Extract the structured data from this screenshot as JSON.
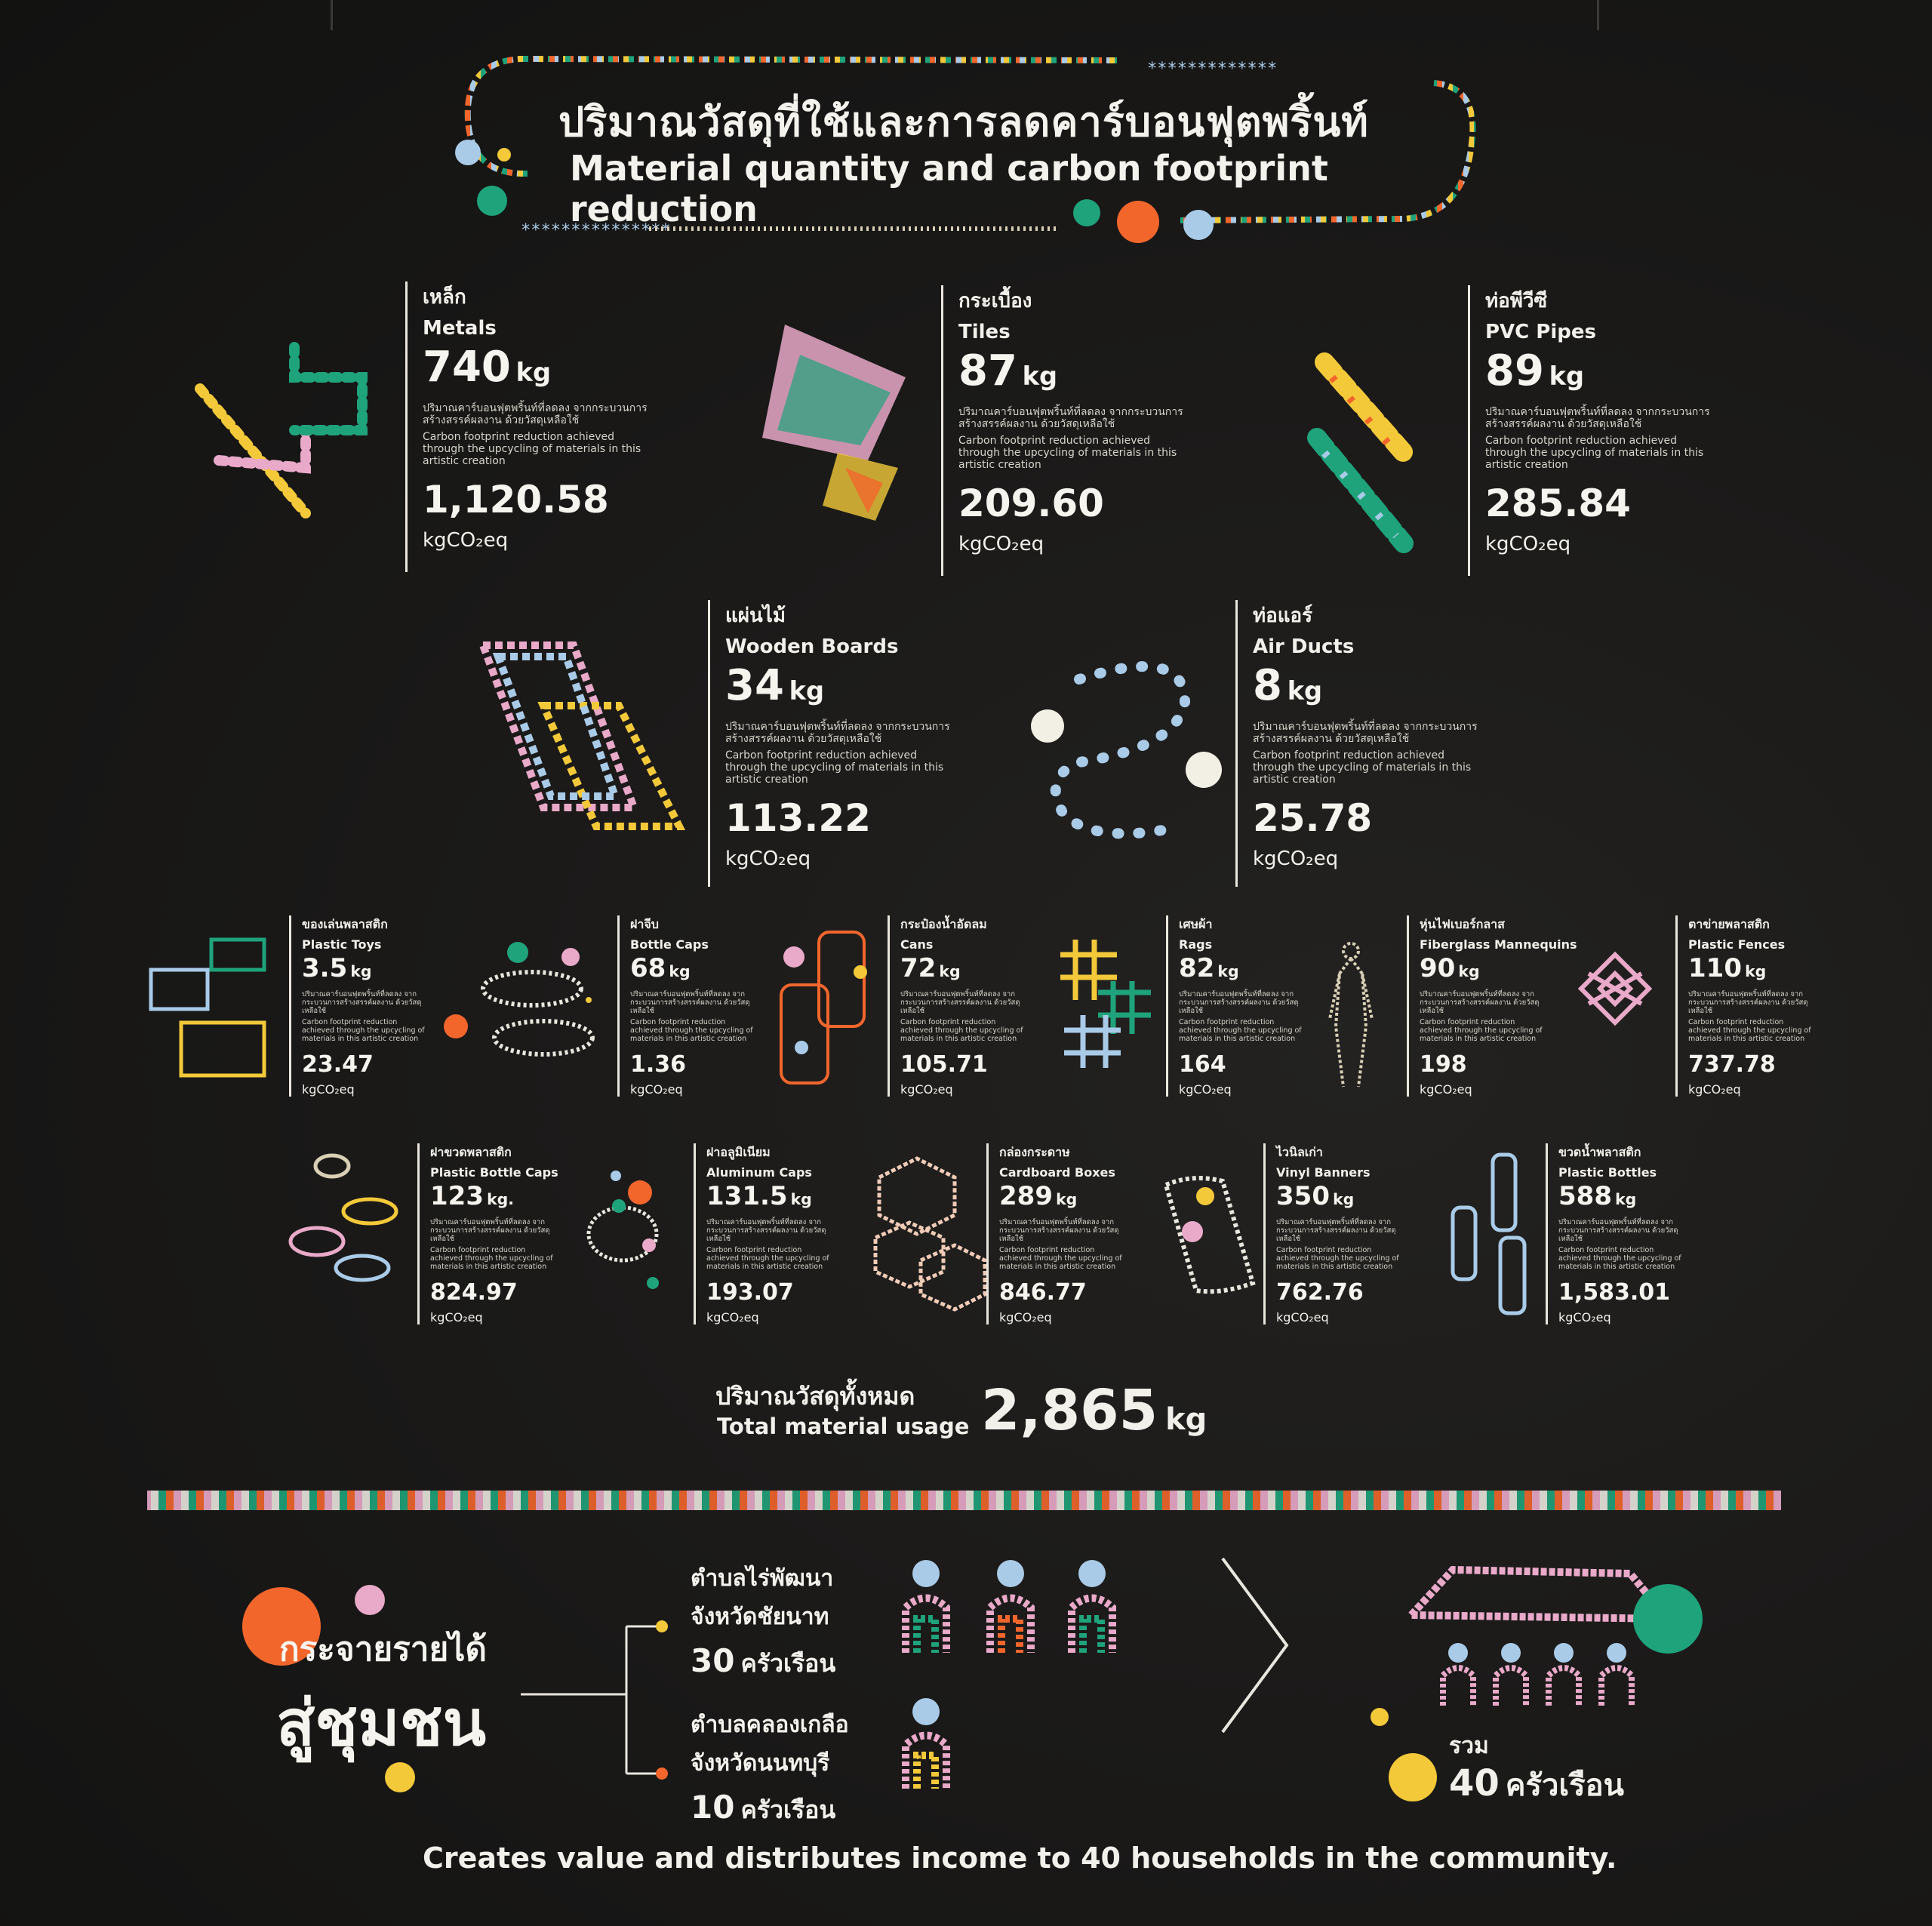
{
  "title": {
    "th": "ปริมาณวัสดุที่ใช้และการลดคาร์บอนฟุตพริ้นท์",
    "en": "Material quantity and carbon footprint reduction"
  },
  "note_th": "ปริมาณคาร์บอนฟุตพริ้นท์ที่ลดลง จากกระบวนการสร้างสรรค์ผลงาน ด้วยวัสดุเหลือใช้",
  "note_en": "Carbon footprint reduction achieved through the upcycling of materials in this artistic creation",
  "co2_unit": "kgCO₂eq",
  "materials": [
    {
      "th": "เหล็ก",
      "en": "Metals",
      "qty": "740",
      "unit": "kg",
      "co2": "1,120.58"
    },
    {
      "th": "กระเบื้อง",
      "en": "Tiles",
      "qty": "87",
      "unit": "kg",
      "co2": "209.60"
    },
    {
      "th": "ท่อพีวีซี",
      "en": "PVC Pipes",
      "qty": "89",
      "unit": "kg",
      "co2": "285.84"
    },
    {
      "th": "แผ่นไม้",
      "en": "Wooden Boards",
      "qty": "34",
      "unit": "kg",
      "co2": "113.22"
    },
    {
      "th": "ท่อแอร์",
      "en": "Air Ducts",
      "qty": "8",
      "unit": "kg",
      "co2": "25.78"
    },
    {
      "th": "ของเล่นพลาสติก",
      "en": "Plastic Toys",
      "qty": "3.5",
      "unit": "kg",
      "co2": "23.47"
    },
    {
      "th": "ฝาจีบ",
      "en": "Bottle Caps",
      "qty": "68",
      "unit": "kg",
      "co2": "1.36"
    },
    {
      "th": "กระป๋องน้ำอัดลม",
      "en": "Cans",
      "qty": "72",
      "unit": "kg",
      "co2": "105.71"
    },
    {
      "th": "เศษผ้า",
      "en": "Rags",
      "qty": "82",
      "unit": "kg",
      "co2": "164"
    },
    {
      "th": "หุ่นไฟเบอร์กลาส",
      "en": "Fiberglass Mannequins",
      "qty": "90",
      "unit": "kg",
      "co2": "198"
    },
    {
      "th": "ตาข่ายพลาสติก",
      "en": "Plastic Fences",
      "qty": "110",
      "unit": "kg",
      "co2": "737.78"
    },
    {
      "th": "ฝาขวดพลาสติก",
      "en": "Plastic Bottle Caps",
      "qty": "123",
      "unit": "kg.",
      "co2": "824.97"
    },
    {
      "th": "ฝาอลูมิเนียม",
      "en": "Aluminum Caps",
      "qty": "131.5",
      "unit": "kg",
      "co2": "193.07"
    },
    {
      "th": "กล่องกระดาษ",
      "en": "Cardboard Boxes",
      "qty": "289",
      "unit": "kg",
      "co2": "846.77"
    },
    {
      "th": "ไวนิลเก่า",
      "en": "Vinyl Banners",
      "qty": "350",
      "unit": "kg",
      "co2": "762.76"
    },
    {
      "th": "ขวดน้ำพลาสติก",
      "en": "Plastic Bottles",
      "qty": "588",
      "unit": "kg",
      "co2": "1,583.01"
    }
  ],
  "total": {
    "th": "ปริมาณวัสดุทั้งหมด",
    "en": "Total material usage",
    "value": "2,865",
    "unit": "kg"
  },
  "community": {
    "line1": "กระจายรายได้",
    "line2": "สู่ชุมชน",
    "places": [
      {
        "a": "ตำบลไร่พัฒนา",
        "b": "จังหวัดชัยนาท",
        "count": "30",
        "unit": "ครัวเรือน"
      },
      {
        "a": "ตำบลคลองเกลือ",
        "b": "จังหวัดนนทบุรี",
        "count": "10",
        "unit": "ครัวเรือน"
      }
    ],
    "sum_label": "รวม",
    "sum_value": "40",
    "sum_unit": "ครัวเรือน",
    "footer": "Creates value and distributes income to 40 households in the community."
  },
  "colors": {
    "background": "#1b1a19",
    "text": "#f2f0ea",
    "orange": "#f2662c",
    "green": "#1fa37b",
    "yellow": "#f3c93a",
    "pink": "#e9a9c9",
    "blue": "#a9cbe8"
  }
}
